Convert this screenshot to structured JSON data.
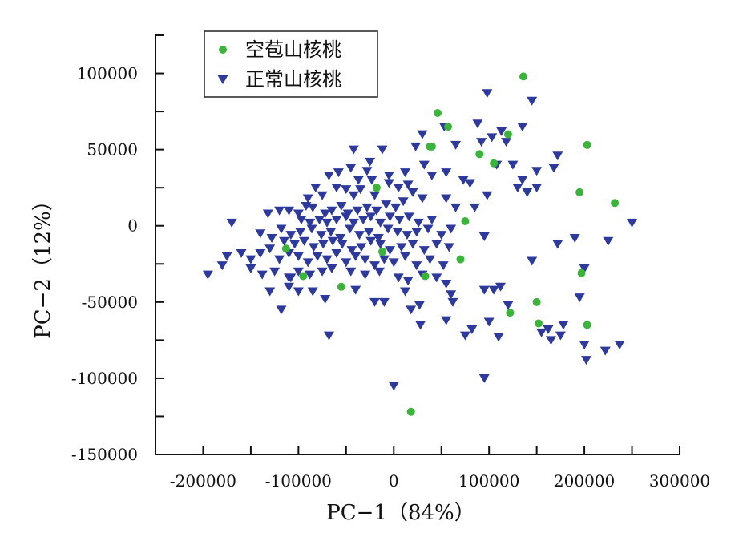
{
  "chart_data": {
    "type": "scatter",
    "title": "",
    "xlabel": "PC−1（84%）",
    "ylabel": "PC−2（12%）",
    "xlim": [
      -250000,
      300000
    ],
    "ylim": [
      -150000,
      125000
    ],
    "xticks": [
      -200000,
      -100000,
      0,
      100000,
      200000,
      300000
    ],
    "xtick_labels": [
      "-200000",
      "-100000",
      "0",
      "100000",
      "200000",
      "300000"
    ],
    "yticks": [
      -150000,
      -100000,
      -50000,
      0,
      50000,
      100000
    ],
    "ytick_labels": [
      "-150000",
      "-100000",
      "-50000",
      "0",
      "50000",
      "100000"
    ],
    "grid": false,
    "legend_position": "top-left",
    "series": [
      {
        "name": "空苞山核桃",
        "marker": "circle",
        "color": "#3cb43c",
        "points": [
          [
            136000,
            98000
          ],
          [
            46000,
            74000
          ],
          [
            57000,
            65000
          ],
          [
            40000,
            52000
          ],
          [
            38000,
            52000
          ],
          [
            90000,
            47000
          ],
          [
            120000,
            60000
          ],
          [
            105000,
            41000
          ],
          [
            203000,
            53000
          ],
          [
            195000,
            22000
          ],
          [
            232000,
            15000
          ],
          [
            -18000,
            25000
          ],
          [
            75000,
            3000
          ],
          [
            70000,
            -22000
          ],
          [
            -113000,
            -15000
          ],
          [
            -95000,
            -33000
          ],
          [
            -55000,
            -40000
          ],
          [
            -12000,
            -17000
          ],
          [
            33000,
            -33000
          ],
          [
            197000,
            -31000
          ],
          [
            150000,
            -50000
          ],
          [
            122000,
            -57000
          ],
          [
            152000,
            -64000
          ],
          [
            203000,
            -65000
          ],
          [
            18000,
            -122000
          ]
        ]
      },
      {
        "name": "正常山核桃",
        "marker": "triangle-down",
        "color": "#2d3a9c",
        "points": [
          [
            98000,
            87000
          ],
          [
            145000,
            82000
          ],
          [
            135000,
            65000
          ],
          [
            30000,
            60000
          ],
          [
            53000,
            65000
          ],
          [
            88000,
            67000
          ],
          [
            103000,
            58000
          ],
          [
            113000,
            62000
          ],
          [
            118000,
            55000
          ],
          [
            23000,
            52000
          ],
          [
            65000,
            53000
          ],
          [
            92000,
            55000
          ],
          [
            172000,
            46000
          ],
          [
            168000,
            38000
          ],
          [
            150000,
            36000
          ],
          [
            125000,
            40000
          ],
          [
            108000,
            40000
          ],
          [
            80000,
            28000
          ],
          [
            73000,
            30000
          ],
          [
            -42000,
            50000
          ],
          [
            -12000,
            50000
          ],
          [
            -25000,
            42000
          ],
          [
            -58000,
            35000
          ],
          [
            -68000,
            33000
          ],
          [
            -23000,
            30000
          ],
          [
            -5000,
            33000
          ],
          [
            12000,
            35000
          ],
          [
            32000,
            40000
          ],
          [
            55000,
            35000
          ],
          [
            40000,
            33000
          ],
          [
            -45000,
            38000
          ],
          [
            -37000,
            30000
          ],
          [
            -28000,
            36000
          ],
          [
            -82000,
            25000
          ],
          [
            -75000,
            20000
          ],
          [
            -60000,
            25000
          ],
          [
            -50000,
            24000
          ],
          [
            -42000,
            20000
          ],
          [
            -35000,
            24000
          ],
          [
            -20000,
            20000
          ],
          [
            -5000,
            28000
          ],
          [
            5000,
            25000
          ],
          [
            15000,
            27000
          ],
          [
            20000,
            22000
          ],
          [
            30000,
            18000
          ],
          [
            130000,
            25000
          ],
          [
            140000,
            22000
          ],
          [
            150000,
            25000
          ],
          [
            135000,
            30000
          ],
          [
            98000,
            20000
          ],
          [
            85000,
            12000
          ],
          [
            65000,
            12000
          ],
          [
            55000,
            18000
          ],
          [
            -90000,
            18000
          ],
          [
            -92000,
            13000
          ],
          [
            -100000,
            8000
          ],
          [
            -110000,
            10000
          ],
          [
            -120000,
            10000
          ],
          [
            -132000,
            8000
          ],
          [
            -85000,
            12000
          ],
          [
            -72000,
            8000
          ],
          [
            -65000,
            10000
          ],
          [
            -55000,
            13000
          ],
          [
            -48000,
            8000
          ],
          [
            -38000,
            10000
          ],
          [
            -28000,
            12000
          ],
          [
            -18000,
            10000
          ],
          [
            -8000,
            14000
          ],
          [
            2000,
            12000
          ],
          [
            10000,
            16000
          ],
          [
            -97000,
            4000
          ],
          [
            -88000,
            2000
          ],
          [
            -78000,
            4000
          ],
          [
            -70000,
            2000
          ],
          [
            -60000,
            4000
          ],
          [
            -50000,
            6000
          ],
          [
            -42000,
            2000
          ],
          [
            -32000,
            4000
          ],
          [
            -24000,
            6000
          ],
          [
            -14000,
            2000
          ],
          [
            -4000,
            6000
          ],
          [
            6000,
            4000
          ],
          [
            16000,
            6000
          ],
          [
            26000,
            2000
          ],
          [
            40000,
            4000
          ],
          [
            -118000,
            -2000
          ],
          [
            -108000,
            -6000
          ],
          [
            -98000,
            -4000
          ],
          [
            -86000,
            -2000
          ],
          [
            -76000,
            -6000
          ],
          [
            -66000,
            -4000
          ],
          [
            -56000,
            -8000
          ],
          [
            -46000,
            -2000
          ],
          [
            -36000,
            -6000
          ],
          [
            -26000,
            -4000
          ],
          [
            -16000,
            -8000
          ],
          [
            -6000,
            -2000
          ],
          [
            4000,
            -4000
          ],
          [
            14000,
            -6000
          ],
          [
            24000,
            -4000
          ],
          [
            36000,
            -2000
          ],
          [
            50000,
            -6000
          ],
          [
            60000,
            -2000
          ],
          [
            -140000,
            -5000
          ],
          [
            -128000,
            -8000
          ],
          [
            -115000,
            -10000
          ],
          [
            -104000,
            -12000
          ],
          [
            -94000,
            -10000
          ],
          [
            -84000,
            -14000
          ],
          [
            -74000,
            -12000
          ],
          [
            -64000,
            -10000
          ],
          [
            -54000,
            -12000
          ],
          [
            -44000,
            -16000
          ],
          [
            -34000,
            -14000
          ],
          [
            -24000,
            -10000
          ],
          [
            -14000,
            -12000
          ],
          [
            -4000,
            -16000
          ],
          [
            8000,
            -14000
          ],
          [
            20000,
            -12000
          ],
          [
            32000,
            -16000
          ],
          [
            45000,
            -12000
          ],
          [
            58000,
            -14000
          ],
          [
            -170000,
            2000
          ],
          [
            -175000,
            -20000
          ],
          [
            -160000,
            -18000
          ],
          [
            -150000,
            -22000
          ],
          [
            -140000,
            -18000
          ],
          [
            -130000,
            -15000
          ],
          [
            -120000,
            -22000
          ],
          [
            -110000,
            -18000
          ],
          [
            -100000,
            -20000
          ],
          [
            -90000,
            -24000
          ],
          [
            -80000,
            -20000
          ],
          [
            -70000,
            -22000
          ],
          [
            -60000,
            -18000
          ],
          [
            -50000,
            -24000
          ],
          [
            -40000,
            -20000
          ],
          [
            -30000,
            -22000
          ],
          [
            -20000,
            -26000
          ],
          [
            -10000,
            -22000
          ],
          [
            0,
            -24000
          ],
          [
            12000,
            -20000
          ],
          [
            24000,
            -26000
          ],
          [
            38000,
            -22000
          ],
          [
            52000,
            -26000
          ],
          [
            -180000,
            -26000
          ],
          [
            -150000,
            -28000
          ],
          [
            -138000,
            -32000
          ],
          [
            -125000,
            -30000
          ],
          [
            -110000,
            -34000
          ],
          [
            -100000,
            -30000
          ],
          [
            -88000,
            -32000
          ],
          [
            -75000,
            -30000
          ],
          [
            -65000,
            -28000
          ],
          [
            -45000,
            -30000
          ],
          [
            -30000,
            -32000
          ],
          [
            -15000,
            -30000
          ],
          [
            5000,
            -34000
          ],
          [
            15000,
            -36000
          ],
          [
            30000,
            -32000
          ],
          [
            45000,
            -34000
          ],
          [
            55000,
            -38000
          ],
          [
            95000,
            -7000
          ],
          [
            145000,
            -23000
          ],
          [
            172000,
            -12000
          ],
          [
            190000,
            -8000
          ],
          [
            225000,
            -10000
          ],
          [
            250000,
            2000
          ],
          [
            -195000,
            -32000
          ],
          [
            -108000,
            -34000
          ],
          [
            -110000,
            -40000
          ],
          [
            -130000,
            -43000
          ],
          [
            -85000,
            -43000
          ],
          [
            -72000,
            -48000
          ],
          [
            -40000,
            -42000
          ],
          [
            -20000,
            -50000
          ],
          [
            -10000,
            -50000
          ],
          [
            27000,
            -52000
          ],
          [
            62000,
            -50000
          ],
          [
            95000,
            -42000
          ],
          [
            105000,
            -42000
          ],
          [
            112000,
            -40000
          ],
          [
            60000,
            -45000
          ],
          [
            -100000,
            -43000
          ],
          [
            12000,
            -43000
          ],
          [
            120000,
            -52000
          ],
          [
            195000,
            -47000
          ],
          [
            200000,
            -28000
          ],
          [
            155000,
            -70000
          ],
          [
            162000,
            -68000
          ],
          [
            178000,
            -65000
          ],
          [
            175000,
            -72000
          ],
          [
            110000,
            -73000
          ],
          [
            100000,
            -63000
          ],
          [
            82000,
            -68000
          ],
          [
            55000,
            -62000
          ],
          [
            28000,
            -65000
          ],
          [
            18000,
            -55000
          ],
          [
            75000,
            -72000
          ],
          [
            200000,
            -78000
          ],
          [
            222000,
            -82000
          ],
          [
            237000,
            -78000
          ],
          [
            202000,
            -88000
          ],
          [
            165000,
            -75000
          ],
          [
            -68000,
            -72000
          ],
          [
            95000,
            -100000
          ],
          [
            0,
            -105000
          ],
          [
            -118000,
            -55000
          ]
        ]
      }
    ]
  }
}
